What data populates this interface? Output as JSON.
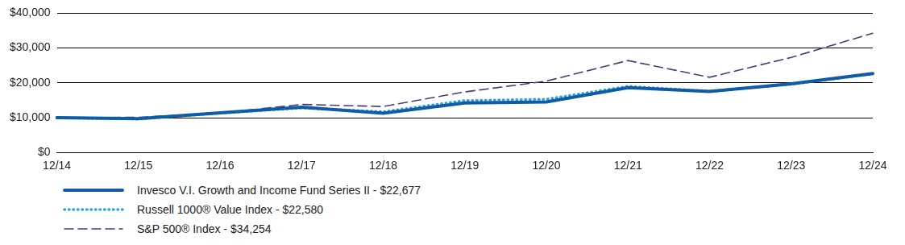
{
  "chart_data": {
    "type": "line",
    "categories": [
      "12/14",
      "12/15",
      "12/16",
      "12/17",
      "12/18",
      "12/19",
      "12/20",
      "12/21",
      "12/22",
      "12/23",
      "12/24"
    ],
    "series": [
      {
        "name": "Invesco V.I. Growth and Income Fund Series II - $22,677",
        "color": "#0f5ba7",
        "line_style": "solid",
        "values": [
          10000,
          9700,
          11400,
          13000,
          11300,
          14200,
          14500,
          18600,
          17500,
          19700,
          22677
        ]
      },
      {
        "name": "Russell 1000® Value Index - $22,580",
        "color": "#2ea3dc",
        "line_style": "dotted",
        "values": [
          10000,
          9600,
          11300,
          12800,
          11700,
          14900,
          15300,
          19000,
          17600,
          19600,
          22580
        ]
      },
      {
        "name": "S&P 500® Index - $34,254",
        "color": "#4b3a7c",
        "line_style": "dashed",
        "values": [
          10000,
          10100,
          11300,
          13800,
          13200,
          17400,
          20500,
          26400,
          21600,
          27300,
          34254
        ]
      }
    ],
    "ylim": [
      0,
      40000
    ],
    "yticks": [
      {
        "value": 0,
        "label": "$0"
      },
      {
        "value": 10000,
        "label": "$10,000"
      },
      {
        "value": 20000,
        "label": "$20,000"
      },
      {
        "value": 30000,
        "label": "$30,000"
      },
      {
        "value": 40000,
        "label": "$40,000"
      }
    ],
    "grid": true,
    "legend": "bottom"
  }
}
